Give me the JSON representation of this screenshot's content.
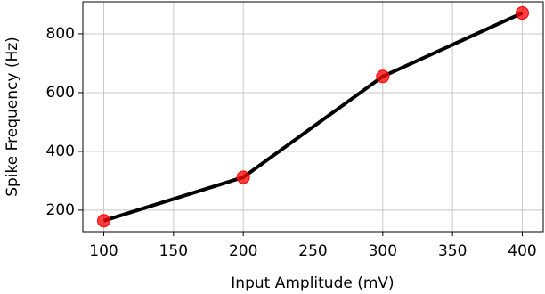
{
  "chart_data": {
    "type": "line",
    "xlabel": "Input Amplitude (mV)",
    "ylabel": "Spike Frequency (Hz)",
    "x": [
      100,
      200,
      300,
      400
    ],
    "values": [
      164,
      312,
      655,
      871
    ],
    "color": "#000000",
    "marker_color": "#ff0000",
    "xlim": [
      85,
      415
    ],
    "ylim": [
      127,
      909
    ],
    "xticks": [
      100,
      150,
      200,
      250,
      300,
      350,
      400
    ],
    "yticks": [
      200,
      400,
      600,
      800
    ],
    "grid": true
  }
}
